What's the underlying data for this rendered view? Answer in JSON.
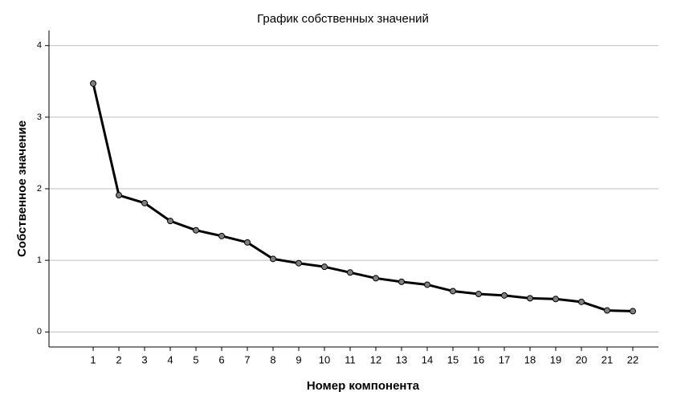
{
  "chart_data": {
    "type": "line",
    "title": "График собственных значений",
    "x_label": "Номер компонента",
    "y_label": "Собственное значение",
    "x": [
      1,
      2,
      3,
      4,
      5,
      6,
      7,
      8,
      9,
      10,
      11,
      12,
      13,
      14,
      15,
      16,
      17,
      18,
      19,
      20,
      21,
      22
    ],
    "series": [
      {
        "color": "#000000",
        "marker_color": "#808080",
        "values": [
          3.47,
          1.91,
          1.8,
          1.55,
          1.42,
          1.34,
          1.25,
          1.02,
          0.96,
          0.91,
          0.83,
          0.75,
          0.7,
          0.66,
          0.57,
          0.53,
          0.51,
          0.47,
          0.46,
          0.42,
          0.3,
          0.29
        ]
      }
    ],
    "xlim": [
      -0.72,
      23
    ],
    "xticks": [
      1,
      2,
      3,
      4,
      5,
      6,
      7,
      8,
      9,
      10,
      11,
      12,
      13,
      14,
      15,
      16,
      17,
      18,
      19,
      20,
      21,
      22
    ],
    "ylim": [
      -0.21,
      4.21
    ],
    "yticks": [
      0,
      1,
      2,
      3,
      4
    ],
    "grid": true
  }
}
